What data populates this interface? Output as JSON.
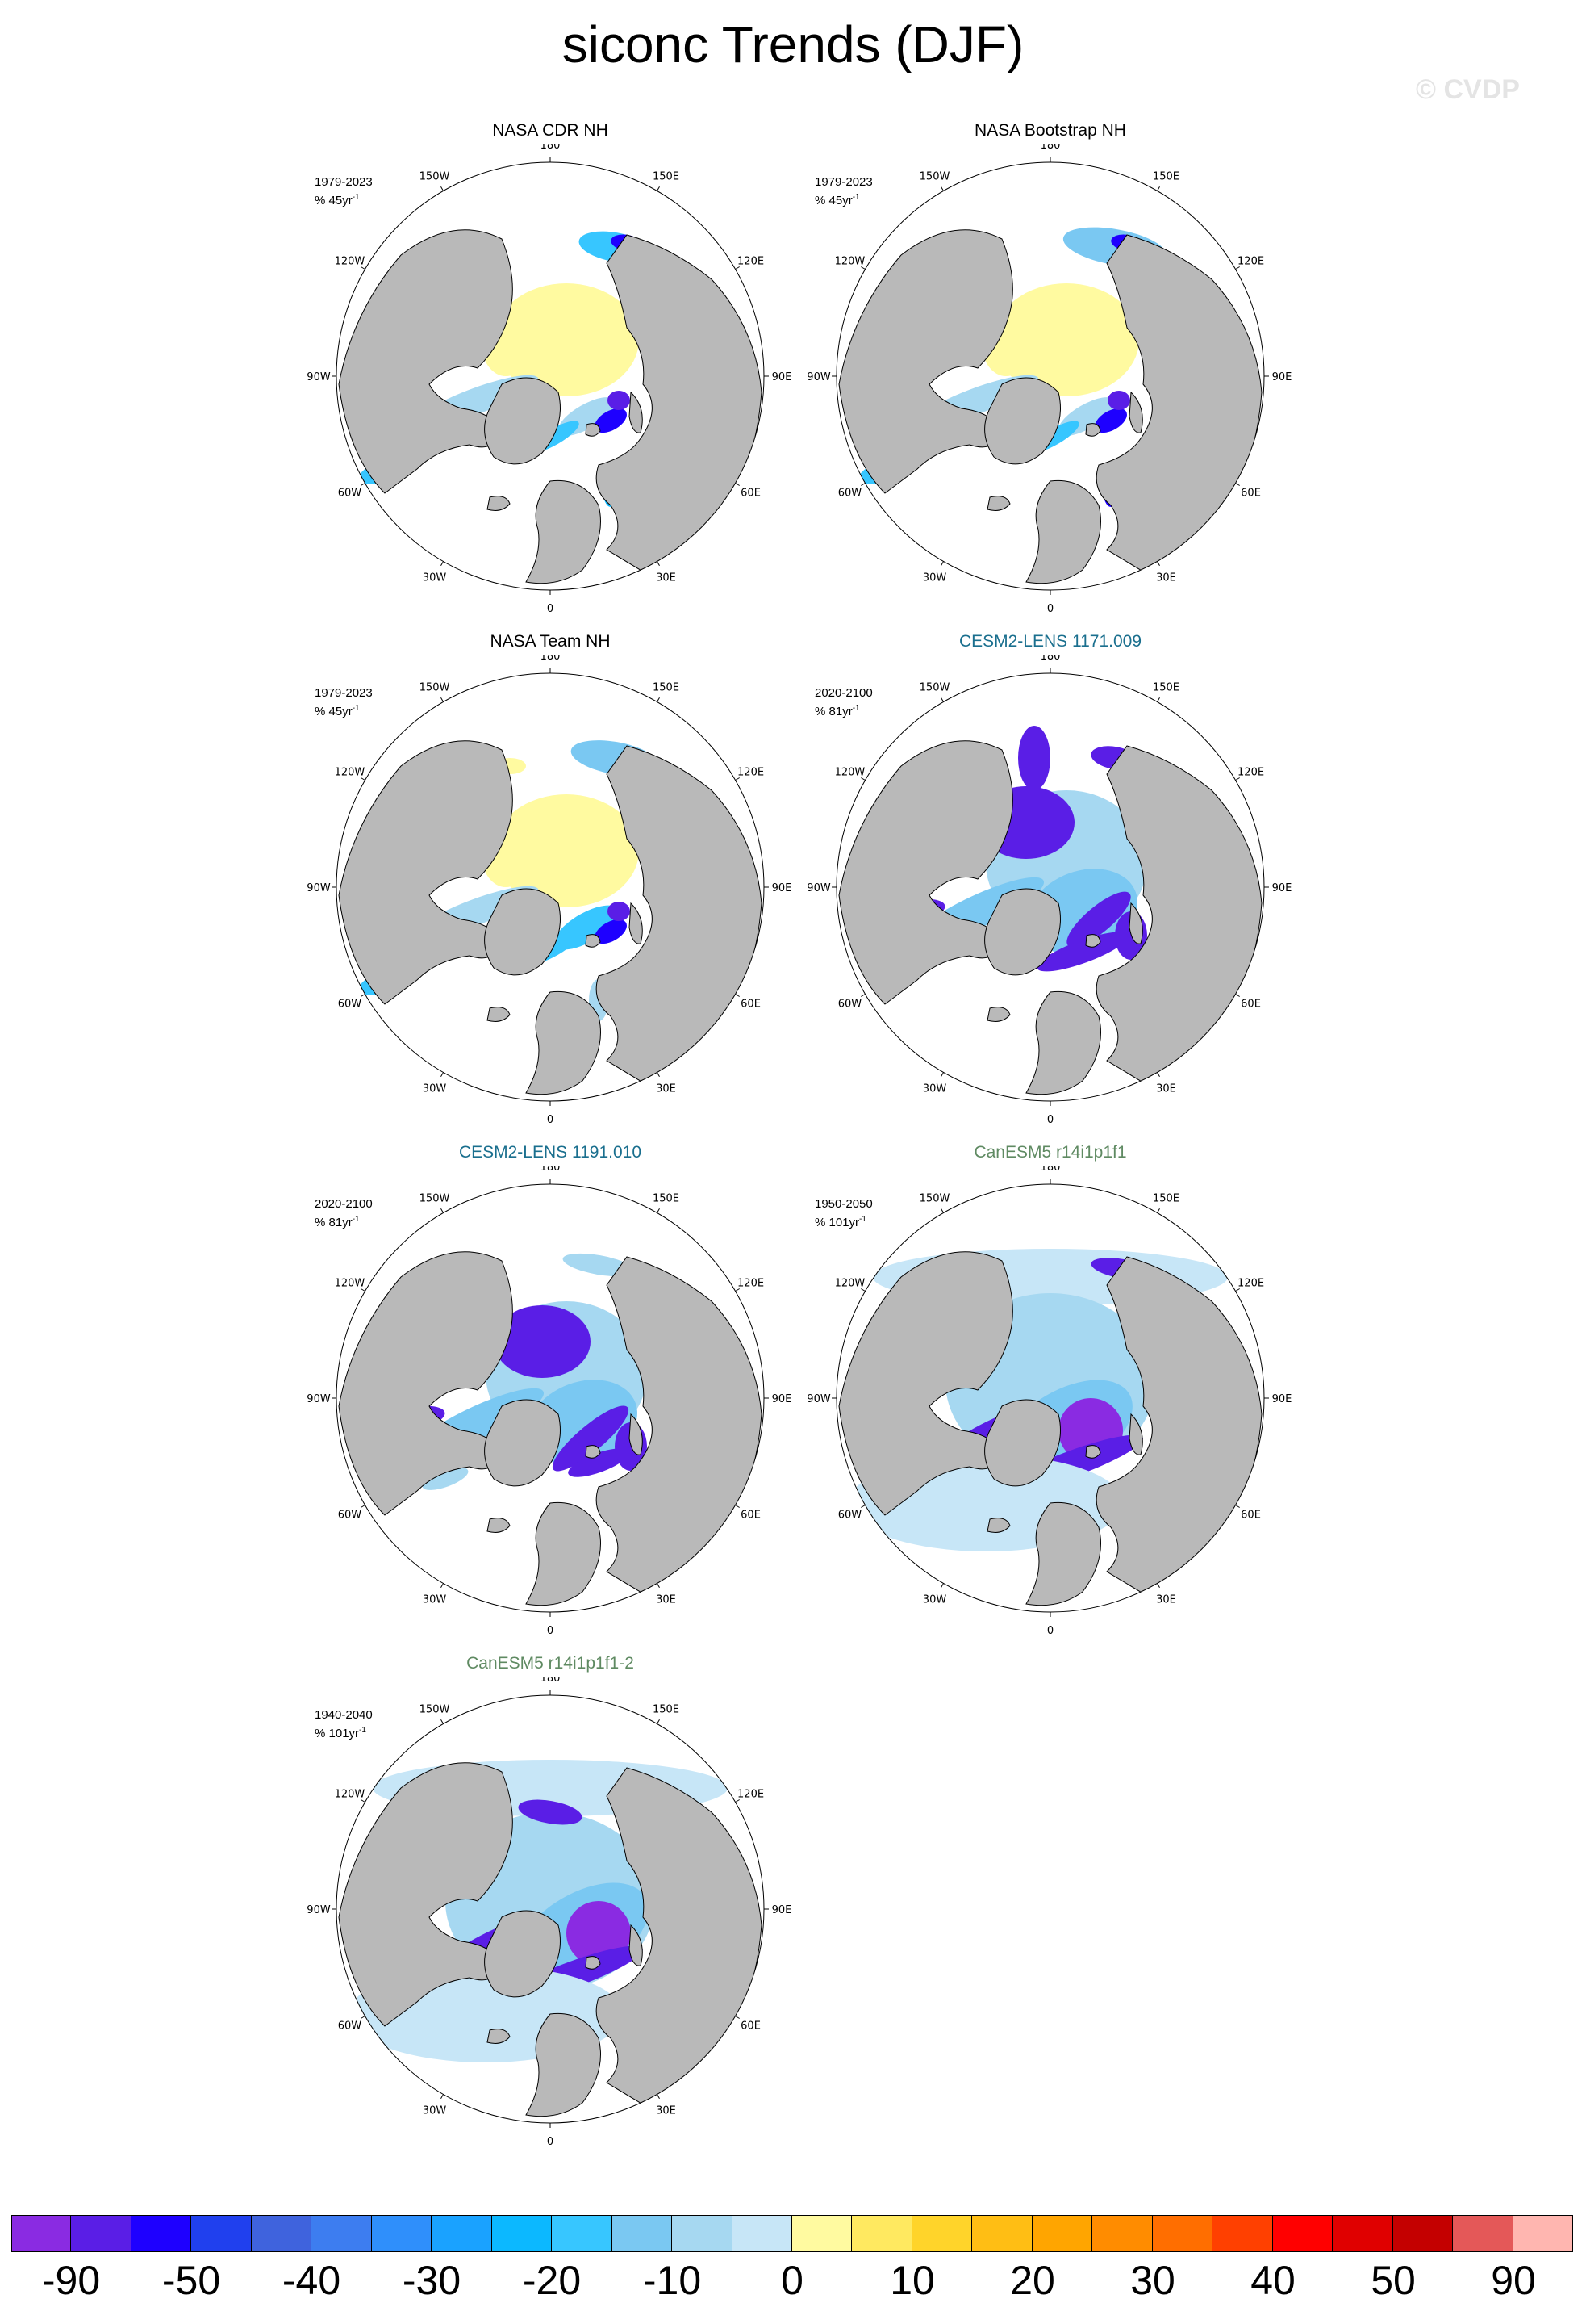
{
  "title": "siconc Trends (DJF)",
  "watermark": "© CVDP",
  "lon_labels": [
    "180",
    "150E",
    "120E",
    "90E",
    "60E",
    "30E",
    "0",
    "30W",
    "60W",
    "90W",
    "120W",
    "150W"
  ],
  "panels": [
    {
      "title": "NASA CDR NH",
      "period": "1979-2023",
      "units": "% 45yr",
      "title_color": "obs",
      "pattern": "obs1"
    },
    {
      "title": "NASA Bootstrap NH",
      "period": "1979-2023",
      "units": "% 45yr",
      "title_color": "obs",
      "pattern": "obs2"
    },
    {
      "title": "NASA Team NH",
      "period": "1979-2023",
      "units": "% 45yr",
      "title_color": "obs",
      "pattern": "obs3"
    },
    {
      "title": "CESM2-LENS 1171.009",
      "period": "2020-2100",
      "units": "% 81yr",
      "title_color": "lens",
      "pattern": "lens1"
    },
    {
      "title": "CESM2-LENS 1191.010",
      "period": "2020-2100",
      "units": "% 81yr",
      "title_color": "lens",
      "pattern": "lens2"
    },
    {
      "title": "CanESM5 r14i1p1f1",
      "period": "1950-2050",
      "units": "% 101yr",
      "title_color": "can",
      "pattern": "can1"
    },
    {
      "title": "CanESM5 r14i1p1f1-2",
      "period": "1940-2040",
      "units": "% 101yr",
      "title_color": "can",
      "pattern": "can2"
    }
  ],
  "colorbar": {
    "colors": [
      "#8a2be2",
      "#5a1ee6",
      "#1e00ff",
      "#2040ee",
      "#3f63dd",
      "#3d7df0",
      "#2f8ffb",
      "#1aa2ff",
      "#0cb8ff",
      "#37c6ff",
      "#7ac8f2",
      "#a6d8f1",
      "#c7e6f7",
      "#fffaa0",
      "#ffe960",
      "#ffd42a",
      "#ffbe14",
      "#ffa500",
      "#ff8c00",
      "#ff6e00",
      "#ff4000",
      "#ff0000",
      "#e00000",
      "#c40000",
      "#e45858",
      "#ffb6b0"
    ],
    "tick_labels": [
      "-90",
      "-50",
      "-40",
      "-30",
      "-20",
      "-10",
      "0",
      "10",
      "20",
      "30",
      "40",
      "50",
      "90"
    ]
  },
  "colors": {
    "land": "#b9b9b9",
    "ocean": "#ffffff",
    "coast": "#000000"
  }
}
